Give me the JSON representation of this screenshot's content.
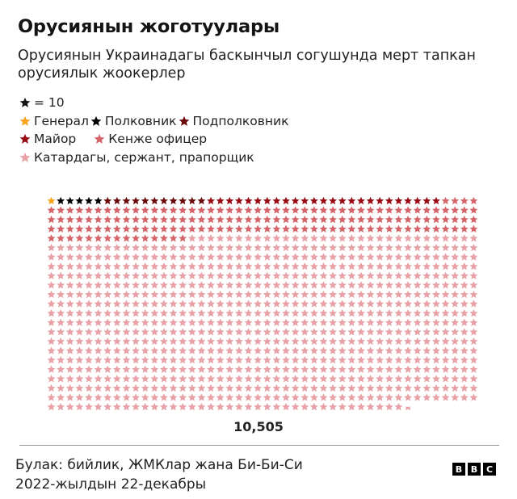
{
  "header": {
    "title": "Орусиянын жоготуулары",
    "subtitle": "Орусиянын Украинадагы баскынчыл согушунда мерт тапкан орусиялык жоокерлер"
  },
  "legend": {
    "unit_label": "= 10",
    "unit_color": "#141414",
    "items": [
      {
        "label": "Генерал",
        "color": "#f8a51d"
      },
      {
        "label": "Полковник",
        "color": "#000000"
      },
      {
        "label": "Подполковник",
        "color": "#6b0a0a"
      },
      {
        "label": "Майор",
        "color": "#990b13"
      },
      {
        "label": "Кенже офицер",
        "color": "#d5656a"
      },
      {
        "label": "Катардагы, сержант, прапорщик",
        "color": "#e8a1a6"
      }
    ]
  },
  "chart_data": {
    "type": "pictogram",
    "title": "Орусиянын жоготуулары",
    "subtitle": "Орусиянын Украинадагы баскынчыл согушунда мерт тапкан орусиялык жоокерлер",
    "unit": "1 star = 10",
    "stars_per_row": 46,
    "total_label": "10,505",
    "total": 10505,
    "categories": [
      "Генерал",
      "Полковник",
      "Подполковник",
      "Майор",
      "Кенже офицер",
      "Катардагы, сержант, прапорщик"
    ],
    "stars": [
      1,
      5,
      11,
      25,
      157,
      851.5
    ],
    "values_approx": [
      10,
      50,
      110,
      250,
      1570,
      8515
    ],
    "colors": [
      "#f8a51d",
      "#000000",
      "#6b0a0a",
      "#990b13",
      "#d5656a",
      "#e8a1a6"
    ]
  },
  "footer": {
    "total": "10,505",
    "source": "Булак: бийлик, ЖМКлар жана Би-Би-Си",
    "date": "2022-жылдын 22-декабры",
    "logo_letters": [
      "B",
      "B",
      "C"
    ]
  }
}
